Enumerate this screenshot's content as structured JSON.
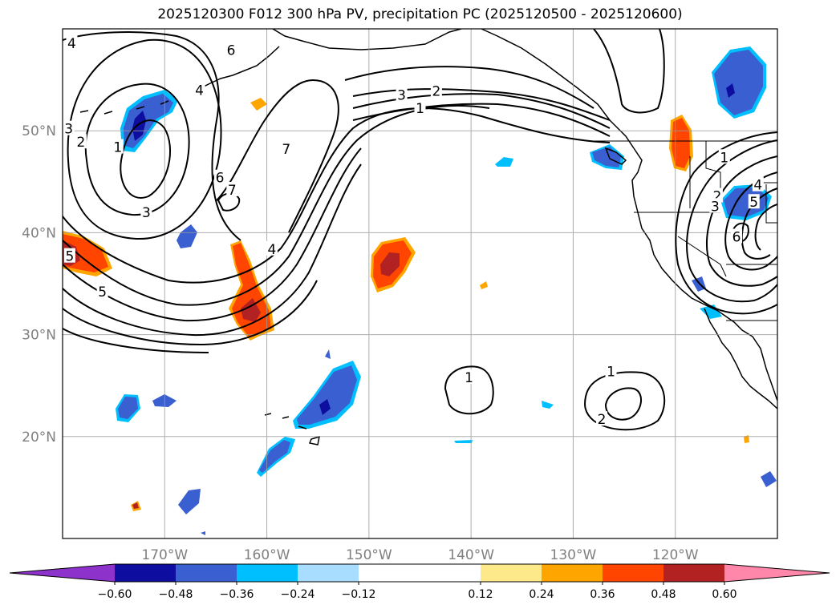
{
  "title": "2025120300 F012 300 hPa PV, precipitation PC (2025120500 - 2025120600)",
  "map": {
    "projection": "PlateCarree",
    "lon_range": [
      -180,
      -110
    ],
    "lat_range": [
      10,
      60
    ],
    "lat_ticks": [
      {
        "value": 50,
        "label": "50°N"
      },
      {
        "value": 40,
        "label": "40°N"
      },
      {
        "value": 30,
        "label": "30°N"
      },
      {
        "value": 20,
        "label": "20°N"
      }
    ],
    "lon_ticks": [
      {
        "value": -170,
        "label": "170°W"
      },
      {
        "value": -160,
        "label": "160°W"
      },
      {
        "value": -150,
        "label": "150°W"
      },
      {
        "value": -140,
        "label": "140°W"
      },
      {
        "value": -130,
        "label": "130°W"
      },
      {
        "value": -120,
        "label": "120°W"
      }
    ],
    "tick_color": "#808080"
  },
  "contour_labels": [
    {
      "text": "4",
      "lon": -179.1,
      "lat": 58.6
    },
    {
      "text": "3",
      "lon": -179.4,
      "lat": 50.2
    },
    {
      "text": "2",
      "lon": -178.2,
      "lat": 48.9
    },
    {
      "text": "1",
      "lon": -174.6,
      "lat": 48.4
    },
    {
      "text": "6",
      "lon": -163.5,
      "lat": 57.9
    },
    {
      "text": "4",
      "lon": -166.6,
      "lat": 54.0
    },
    {
      "text": "7",
      "lon": -158.1,
      "lat": 48.2
    },
    {
      "text": "6",
      "lon": -164.6,
      "lat": 45.4
    },
    {
      "text": "7",
      "lon": -163.4,
      "lat": 44.2
    },
    {
      "text": "3",
      "lon": -171.8,
      "lat": 42.0
    },
    {
      "text": "4",
      "lon": -159.5,
      "lat": 38.4
    },
    {
      "text": "5",
      "lon": -176.1,
      "lat": 34.2
    },
    {
      "text": "5",
      "lon": -179.3,
      "lat": 37.7
    },
    {
      "text": "3",
      "lon": -146.8,
      "lat": 53.5
    },
    {
      "text": "2",
      "lon": -143.4,
      "lat": 53.9
    },
    {
      "text": "1",
      "lon": -145.0,
      "lat": 52.2
    },
    {
      "text": "1",
      "lon": -140.2,
      "lat": 25.8
    },
    {
      "text": "1",
      "lon": -126.3,
      "lat": 26.4
    },
    {
      "text": "2",
      "lon": -127.2,
      "lat": 21.7
    },
    {
      "text": "1",
      "lon": -115.2,
      "lat": 47.4
    },
    {
      "text": "2",
      "lon": -115.9,
      "lat": 43.6
    },
    {
      "text": "3",
      "lon": -116.1,
      "lat": 42.6
    },
    {
      "text": "4",
      "lon": -111.9,
      "lat": 44.7
    },
    {
      "text": "5",
      "lon": -112.3,
      "lat": 43.0
    },
    {
      "text": "6",
      "lon": -114.0,
      "lat": 39.6
    }
  ],
  "colorbar": {
    "colors": [
      "#9933cc",
      "#7733cc",
      "#0d0d9f",
      "#3a5fd0",
      "#00bfff",
      "#a8ddff",
      "#ffffff",
      "#fde98a",
      "#ffa500",
      "#ff4500",
      "#b22222",
      "#ff88aa"
    ],
    "boundaries": [
      -0.72,
      -0.6,
      -0.48,
      -0.36,
      -0.24,
      -0.12,
      0.12,
      0.24,
      0.36,
      0.48,
      0.6,
      0.72
    ],
    "tick_labels": [
      "−0.60",
      "−0.48",
      "−0.36",
      "−0.24",
      "−0.12",
      "0.12",
      "0.24",
      "0.36",
      "0.48",
      "0.60"
    ],
    "extend": "both"
  }
}
